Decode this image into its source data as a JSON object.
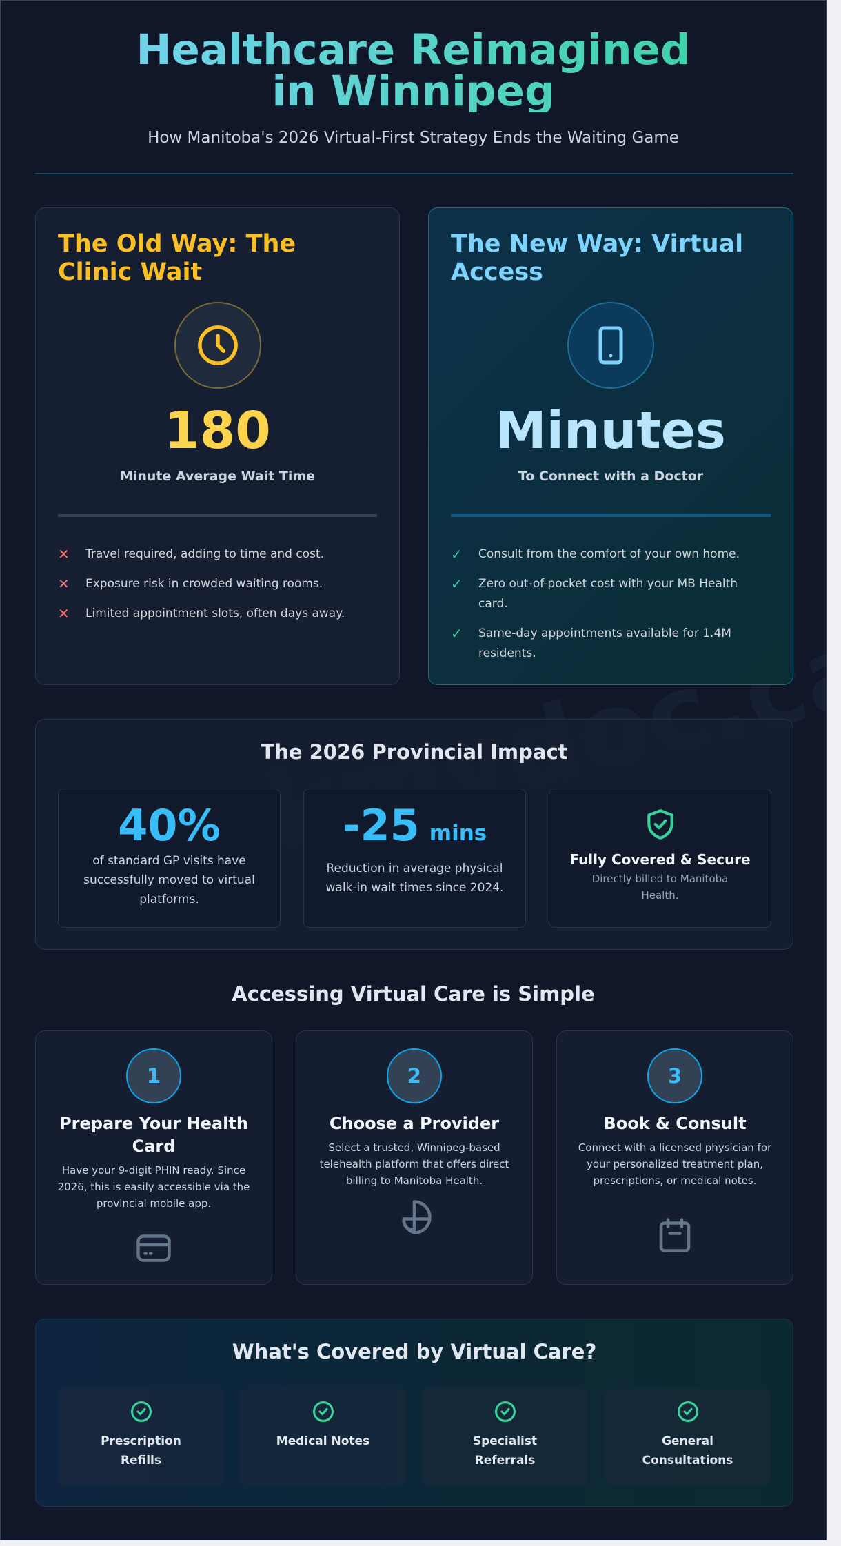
{
  "header": {
    "title": "Healthcare Reimagined in Winnipeg",
    "subtitle": "How Manitoba's 2026 Virtual-First Strategy Ends the Waiting Game"
  },
  "watermark": "askmydoc.ca",
  "colors": {
    "old_accent": "#fbbf24",
    "new_accent": "#7dd3fc",
    "stat_blue": "#38bdf8",
    "check_green": "#34d399",
    "cross_red": "#f87171",
    "background": "#0f1729"
  },
  "old_way": {
    "title": "The Old Way: The Clinic Wait",
    "icon": "clock-icon",
    "value": "180",
    "caption": "Minute Average Wait Time",
    "points": [
      "Travel required, adding to time and cost.",
      "Exposure risk in crowded waiting rooms.",
      "Limited appointment slots, often days away."
    ]
  },
  "new_way": {
    "title": "The New Way: Virtual Access",
    "icon": "smartphone-icon",
    "value": "Minutes",
    "caption": "To Connect with a Doctor",
    "points": [
      "Consult from the comfort of your own home.",
      "Zero out-of-pocket cost with your MB Health card.",
      "Same-day appointments available for 1.4M residents."
    ]
  },
  "impact": {
    "title": "The 2026 Provincial Impact",
    "stats": [
      {
        "value": "40%",
        "desc": "of standard GP visits have successfully moved to virtual platforms."
      },
      {
        "value": "-25",
        "unit": "mins",
        "desc": "Reduction in average physical walk-in wait times since 2024."
      },
      {
        "icon": "shield-check-icon",
        "title": "Fully Covered & Secure",
        "desc": "Directly billed to Manitoba Health."
      }
    ]
  },
  "steps": {
    "title": "Accessing Virtual Care is Simple",
    "items": [
      {
        "number": "1",
        "title": "Prepare Your Health Card",
        "desc": "Have your 9-digit PHIN ready. Since 2026, this is easily accessible via the provincial mobile app.",
        "icon": "credit-card-icon"
      },
      {
        "number": "2",
        "title": "Choose a Provider",
        "desc": "Select a trusted, Winnipeg-based telehealth platform that offers direct billing to Manitoba Health.",
        "icon": "pie-chart-icon"
      },
      {
        "number": "3",
        "title": "Book & Consult",
        "desc": "Connect with a licensed physician for your personalized treatment plan, prescriptions, or medical notes.",
        "icon": "calendar-icon"
      }
    ]
  },
  "covered": {
    "title": "What's Covered by Virtual Care?",
    "items": [
      "Prescription Refills",
      "Medical Notes",
      "Specialist Referrals",
      "General Consultations"
    ]
  }
}
